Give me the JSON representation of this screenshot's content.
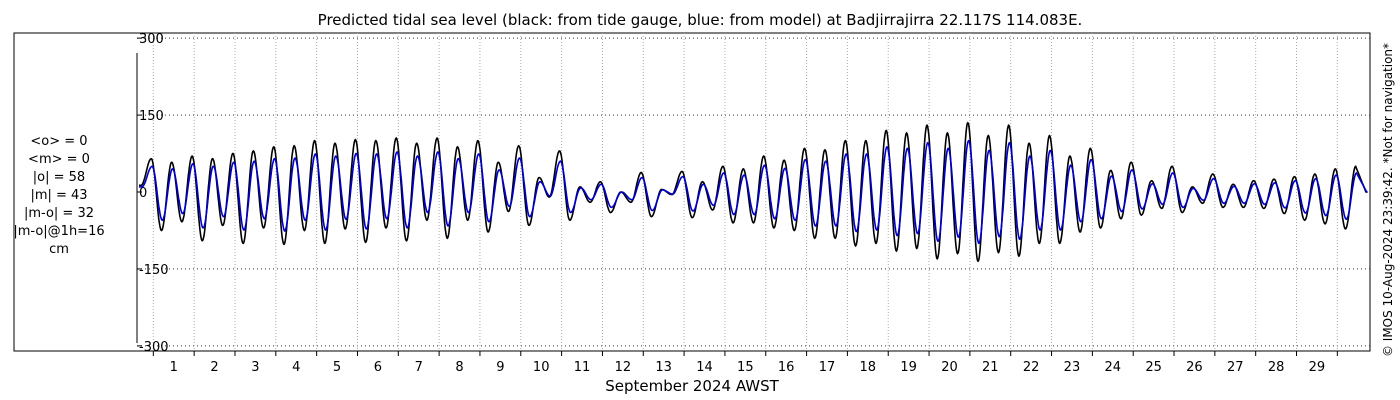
{
  "chart_data": {
    "type": "line",
    "title": "Predicted tidal sea level (black: from tide gauge, blue: from model) at Badjirrajirra 22.117S 114.083E.",
    "xlabel": "September 2024 AWST",
    "ylabel": "",
    "x_ticks": [
      "1",
      "2",
      "3",
      "4",
      "5",
      "6",
      "7",
      "8",
      "9",
      "10",
      "11",
      "12",
      "13",
      "14",
      "15",
      "16",
      "17",
      "18",
      "19",
      "20",
      "21",
      "22",
      "23",
      "24",
      "25",
      "26",
      "27",
      "28",
      "29"
    ],
    "xlim_days": [
      0.6,
      30.8
    ],
    "ylim": [
      -310,
      310
    ],
    "y_ticks": [
      -300,
      -150,
      0,
      150,
      300
    ],
    "grid": true,
    "series": [
      {
        "name": "from tide gauge",
        "color": "#000000",
        "peaks": [
          [
            0.95,
            65
          ],
          [
            1.2,
            -75
          ],
          [
            1.45,
            58
          ],
          [
            1.7,
            -58
          ],
          [
            1.95,
            70
          ],
          [
            2.2,
            -95
          ],
          [
            2.45,
            65
          ],
          [
            2.7,
            -65
          ],
          [
            2.95,
            75
          ],
          [
            3.2,
            -100
          ],
          [
            3.45,
            80
          ],
          [
            3.7,
            -70
          ],
          [
            3.95,
            88
          ],
          [
            4.2,
            -102
          ],
          [
            4.45,
            90
          ],
          [
            4.7,
            -75
          ],
          [
            4.95,
            100
          ],
          [
            5.2,
            -100
          ],
          [
            5.45,
            95
          ],
          [
            5.7,
            -72
          ],
          [
            5.95,
            102
          ],
          [
            6.2,
            -98
          ],
          [
            6.45,
            100
          ],
          [
            6.7,
            -70
          ],
          [
            6.95,
            105
          ],
          [
            7.2,
            -95
          ],
          [
            7.45,
            95
          ],
          [
            7.7,
            -55
          ],
          [
            7.95,
            105
          ],
          [
            8.2,
            -90
          ],
          [
            8.45,
            88
          ],
          [
            8.7,
            -55
          ],
          [
            8.95,
            100
          ],
          [
            9.2,
            -78
          ],
          [
            9.45,
            58
          ],
          [
            9.7,
            -38
          ],
          [
            9.95,
            90
          ],
          [
            10.2,
            -65
          ],
          [
            10.45,
            28
          ],
          [
            10.7,
            -10
          ],
          [
            10.95,
            80
          ],
          [
            11.2,
            -55
          ],
          [
            11.45,
            10
          ],
          [
            11.7,
            -20
          ],
          [
            11.95,
            20
          ],
          [
            12.2,
            -40
          ],
          [
            12.45,
            0
          ],
          [
            12.7,
            -20
          ],
          [
            12.95,
            38
          ],
          [
            13.2,
            -48
          ],
          [
            13.45,
            5
          ],
          [
            13.7,
            -5
          ],
          [
            13.95,
            40
          ],
          [
            14.2,
            -50
          ],
          [
            14.45,
            20
          ],
          [
            14.7,
            -35
          ],
          [
            14.95,
            50
          ],
          [
            15.2,
            -60
          ],
          [
            15.45,
            45
          ],
          [
            15.7,
            -60
          ],
          [
            15.95,
            70
          ],
          [
            16.2,
            -70
          ],
          [
            16.45,
            62
          ],
          [
            16.7,
            -75
          ],
          [
            16.95,
            85
          ],
          [
            17.2,
            -90
          ],
          [
            17.45,
            82
          ],
          [
            17.7,
            -90
          ],
          [
            17.95,
            100
          ],
          [
            18.2,
            -105
          ],
          [
            18.45,
            100
          ],
          [
            18.7,
            -100
          ],
          [
            18.95,
            120
          ],
          [
            19.2,
            -115
          ],
          [
            19.45,
            115
          ],
          [
            19.7,
            -110
          ],
          [
            19.95,
            130
          ],
          [
            20.2,
            -130
          ],
          [
            20.45,
            115
          ],
          [
            20.7,
            -120
          ],
          [
            20.95,
            135
          ],
          [
            21.2,
            -135
          ],
          [
            21.45,
            110
          ],
          [
            21.7,
            -118
          ],
          [
            21.95,
            130
          ],
          [
            22.2,
            -125
          ],
          [
            22.45,
            95
          ],
          [
            22.7,
            -100
          ],
          [
            22.95,
            110
          ],
          [
            23.2,
            -100
          ],
          [
            23.45,
            70
          ],
          [
            23.7,
            -78
          ],
          [
            23.95,
            85
          ],
          [
            24.2,
            -70
          ],
          [
            24.45,
            42
          ],
          [
            24.7,
            -52
          ],
          [
            24.95,
            58
          ],
          [
            25.2,
            -45
          ],
          [
            25.45,
            22
          ],
          [
            25.7,
            -32
          ],
          [
            25.95,
            50
          ],
          [
            26.2,
            -40
          ],
          [
            26.45,
            10
          ],
          [
            26.7,
            -22
          ],
          [
            26.95,
            35
          ],
          [
            27.2,
            -30
          ],
          [
            27.45,
            15
          ],
          [
            27.7,
            -30
          ],
          [
            27.95,
            22
          ],
          [
            28.2,
            -32
          ],
          [
            28.45,
            25
          ],
          [
            28.7,
            -42
          ],
          [
            28.95,
            30
          ],
          [
            29.2,
            -55
          ],
          [
            29.45,
            35
          ],
          [
            29.7,
            -62
          ],
          [
            29.95,
            45
          ],
          [
            30.2,
            -72
          ],
          [
            30.45,
            50
          ]
        ]
      },
      {
        "name": "from model",
        "color": "#0000cc",
        "peaks": [
          [
            0.97,
            50
          ],
          [
            1.22,
            -55
          ],
          [
            1.47,
            45
          ],
          [
            1.72,
            -42
          ],
          [
            1.97,
            55
          ],
          [
            2.22,
            -70
          ],
          [
            2.47,
            50
          ],
          [
            2.72,
            -48
          ],
          [
            2.97,
            58
          ],
          [
            3.22,
            -74
          ],
          [
            3.47,
            60
          ],
          [
            3.72,
            -52
          ],
          [
            3.97,
            65
          ],
          [
            4.22,
            -76
          ],
          [
            4.47,
            66
          ],
          [
            4.72,
            -55
          ],
          [
            4.97,
            74
          ],
          [
            5.22,
            -74
          ],
          [
            5.47,
            70
          ],
          [
            5.72,
            -53
          ],
          [
            5.97,
            75
          ],
          [
            6.22,
            -72
          ],
          [
            6.47,
            74
          ],
          [
            6.72,
            -52
          ],
          [
            6.97,
            78
          ],
          [
            7.22,
            -70
          ],
          [
            7.47,
            70
          ],
          [
            7.72,
            -40
          ],
          [
            7.97,
            78
          ],
          [
            8.22,
            -66
          ],
          [
            8.47,
            65
          ],
          [
            8.72,
            -40
          ],
          [
            8.97,
            74
          ],
          [
            9.22,
            -58
          ],
          [
            9.47,
            43
          ],
          [
            9.72,
            -28
          ],
          [
            9.97,
            66
          ],
          [
            10.22,
            -48
          ],
          [
            10.47,
            20
          ],
          [
            10.72,
            -8
          ],
          [
            10.97,
            60
          ],
          [
            11.22,
            -40
          ],
          [
            11.47,
            8
          ],
          [
            11.72,
            -15
          ],
          [
            11.97,
            15
          ],
          [
            12.22,
            -30
          ],
          [
            12.47,
            0
          ],
          [
            12.72,
            -15
          ],
          [
            12.97,
            28
          ],
          [
            13.22,
            -36
          ],
          [
            13.47,
            4
          ],
          [
            13.72,
            -4
          ],
          [
            13.97,
            30
          ],
          [
            14.22,
            -37
          ],
          [
            14.47,
            15
          ],
          [
            14.72,
            -26
          ],
          [
            14.97,
            37
          ],
          [
            15.22,
            -44
          ],
          [
            15.47,
            33
          ],
          [
            15.72,
            -44
          ],
          [
            15.97,
            52
          ],
          [
            16.22,
            -52
          ],
          [
            16.47,
            46
          ],
          [
            16.72,
            -55
          ],
          [
            16.97,
            63
          ],
          [
            17.22,
            -66
          ],
          [
            17.47,
            60
          ],
          [
            17.72,
            -66
          ],
          [
            17.97,
            74
          ],
          [
            18.22,
            -77
          ],
          [
            18.47,
            74
          ],
          [
            18.72,
            -74
          ],
          [
            18.97,
            88
          ],
          [
            19.22,
            -85
          ],
          [
            19.47,
            85
          ],
          [
            19.72,
            -81
          ],
          [
            19.97,
            96
          ],
          [
            20.22,
            -96
          ],
          [
            20.47,
            85
          ],
          [
            20.72,
            -88
          ],
          [
            20.97,
            100
          ],
          [
            21.22,
            -100
          ],
          [
            21.47,
            81
          ],
          [
            21.72,
            -87
          ],
          [
            21.97,
            96
          ],
          [
            22.22,
            -92
          ],
          [
            22.47,
            70
          ],
          [
            22.72,
            -74
          ],
          [
            22.97,
            81
          ],
          [
            23.22,
            -74
          ],
          [
            23.47,
            52
          ],
          [
            23.72,
            -58
          ],
          [
            23.97,
            63
          ],
          [
            24.22,
            -52
          ],
          [
            24.47,
            31
          ],
          [
            24.72,
            -38
          ],
          [
            24.97,
            43
          ],
          [
            25.22,
            -33
          ],
          [
            25.47,
            16
          ],
          [
            25.72,
            -24
          ],
          [
            25.97,
            37
          ],
          [
            26.22,
            -30
          ],
          [
            26.47,
            7
          ],
          [
            26.72,
            -16
          ],
          [
            26.97,
            26
          ],
          [
            27.22,
            -22
          ],
          [
            27.47,
            11
          ],
          [
            27.72,
            -22
          ],
          [
            27.97,
            16
          ],
          [
            28.22,
            -24
          ],
          [
            28.47,
            18
          ],
          [
            28.72,
            -31
          ],
          [
            28.97,
            22
          ],
          [
            29.22,
            -41
          ],
          [
            29.47,
            26
          ],
          [
            29.72,
            -46
          ],
          [
            29.97,
            33
          ],
          [
            30.22,
            -53
          ],
          [
            30.47,
            37
          ]
        ]
      }
    ]
  },
  "stats": {
    "mean_obs": "<o> = 0",
    "mean_model": "<m> = 0",
    "abs_obs": "|o| = 58",
    "abs_model": "|m| = 43",
    "abs_diff": "|m-o| = 32",
    "abs_diff_1h": "|m-o|@1h=16",
    "unit": "cm"
  },
  "credit": "© IMOS 10-Aug-2024 23:39:42. *Not for navigation*"
}
